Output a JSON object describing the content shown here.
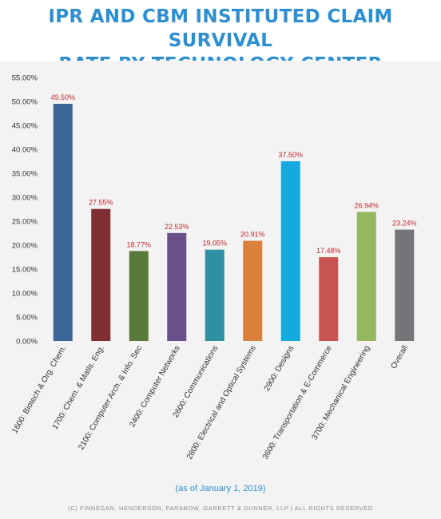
{
  "header": {
    "title_line1": "IPR AND CBM INSTITUTED CLAIM SURVIVAL",
    "title_line2": "RATE BY TECHNOLOGY CENTER"
  },
  "footer": {
    "as_of": "(as of January 1, 2019)",
    "copyright": "(C) FINNEGAN, HENDERSON, FARABOW, GARRETT & DUNNER, LLP | ALL RIGHTS RESERVED"
  },
  "chart_data": {
    "type": "bar",
    "title": "IPR AND CBM INSTITUTED CLAIM SURVIVAL RATE BY TECHNOLOGY CENTER",
    "xlabel": "",
    "ylabel": "",
    "ylim": [
      0,
      55
    ],
    "yticks": [
      0,
      5,
      10,
      15,
      20,
      25,
      30,
      35,
      40,
      45,
      50,
      55
    ],
    "ytick_labels": [
      "0.00%",
      "5.00%",
      "10.00%",
      "15.00%",
      "20.00%",
      "25.00%",
      "30.00%",
      "35.00%",
      "40.00%",
      "45.00%",
      "50.00%",
      "55.00%"
    ],
    "grid": false,
    "legend": "none",
    "categories": [
      "1600: Biotech & Org. Chem.",
      "1700: Chem. & Matls. Eng.",
      "2100: Computer Arch. & Info. Sec",
      "2400: Computer Networks",
      "2600: Communications",
      "2800: Electrical and Optical Systems",
      "2900: Designs",
      "3600: Transportation & E-Commerce",
      "3700: Mechanical Engineering",
      "Overall"
    ],
    "values": [
      49.5,
      27.55,
      18.77,
      22.53,
      19.05,
      20.91,
      37.5,
      17.48,
      26.94,
      23.24
    ],
    "value_labels": [
      "49.50%",
      "27.55%",
      "18.77%",
      "22.53%",
      "19.05%",
      "20.91%",
      "37.50%",
      "17.48%",
      "26.94%",
      "23.24%"
    ],
    "colors": [
      "#3d6698",
      "#7f2e31",
      "#5a7a3a",
      "#6b5089",
      "#2f8fa5",
      "#d9803c",
      "#14a9df",
      "#c75450",
      "#95b85f",
      "#747578"
    ]
  }
}
